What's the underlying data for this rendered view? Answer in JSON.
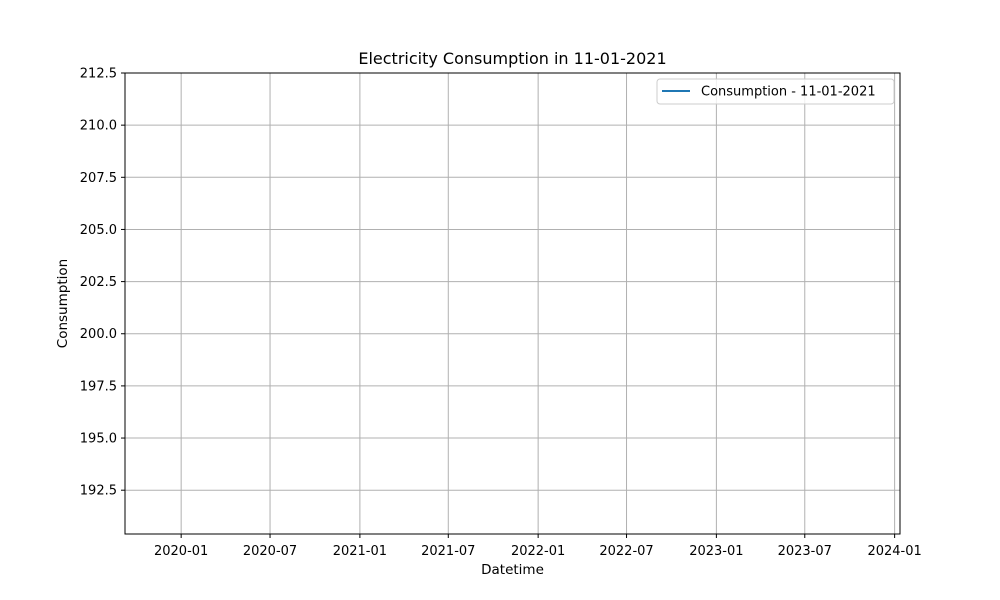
{
  "chart_data": {
    "type": "line",
    "title": "Electricity Consumption in 11-01-2021",
    "xlabel": "Datetime",
    "ylabel": "Consumption",
    "x_tick_labels": [
      "2020-01",
      "2020-07",
      "2021-01",
      "2021-07",
      "2022-01",
      "2022-07",
      "2023-01",
      "2023-07",
      "2024-01"
    ],
    "y_tick_labels": [
      "192.5",
      "195.0",
      "197.5",
      "200.0",
      "202.5",
      "205.0",
      "207.5",
      "210.0",
      "212.5"
    ],
    "xlim": [
      "2019-09-08",
      "2024-01-12"
    ],
    "ylim": [
      190.4,
      212.5
    ],
    "grid": true,
    "legend_position": "upper right",
    "series": [
      {
        "name": "Consumption - 11-01-2021",
        "color": "#1f77b4",
        "x": [],
        "values": []
      }
    ]
  }
}
